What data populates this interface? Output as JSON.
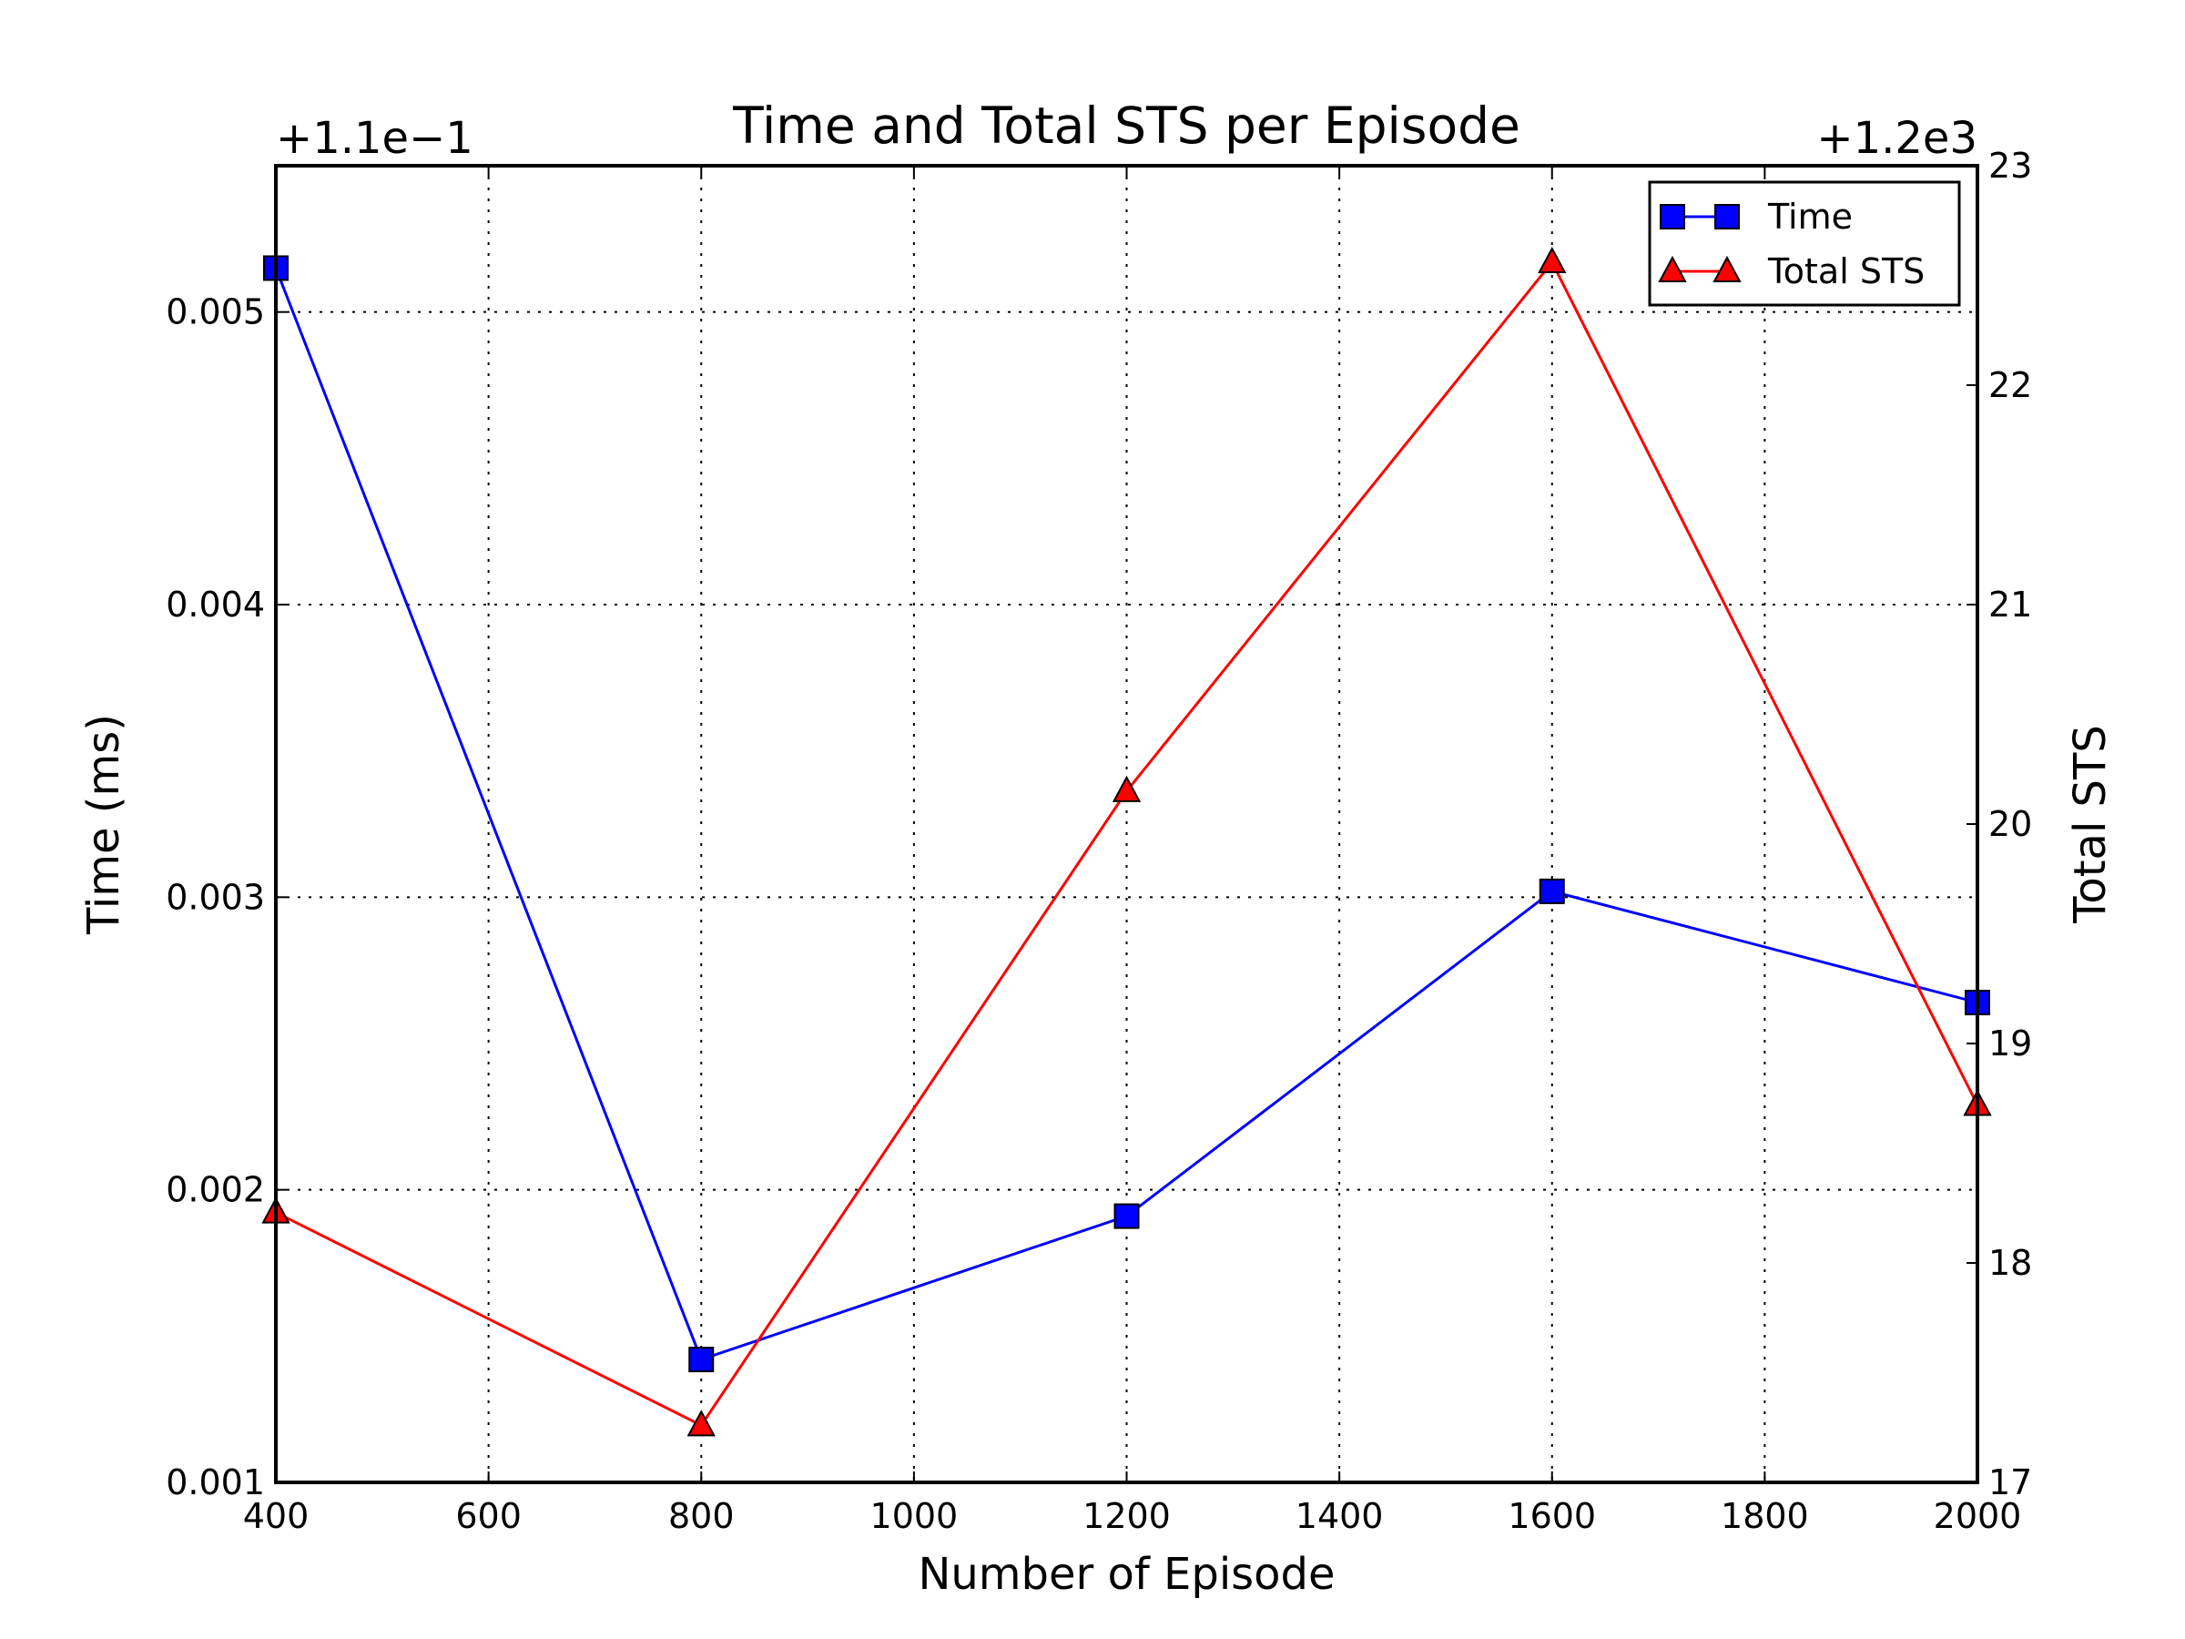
{
  "chart_data": {
    "type": "line",
    "title": "Time and Total STS per Episode",
    "xlabel": "Number of Episode",
    "ylabel_left": "Time (ms)",
    "ylabel_right": "Total STS",
    "offset_left": "+1.1e−1",
    "offset_right": "+1.2e3",
    "x_ticks": [
      "400",
      "600",
      "800",
      "1000",
      "1200",
      "1400",
      "1600",
      "1800",
      "2000"
    ],
    "y_left_ticks": [
      "0.001",
      "0.002",
      "0.003",
      "0.004",
      "0.005"
    ],
    "y_right_ticks": [
      "17",
      "18",
      "19",
      "20",
      "21",
      "22",
      "23"
    ],
    "xlim": [
      400,
      2000
    ],
    "ylim_left": [
      0.001,
      0.0055
    ],
    "ylim_right": [
      17,
      23
    ],
    "grid": true,
    "legend_position": "upper right",
    "x": [
      400,
      800,
      1200,
      1600,
      2000
    ],
    "series": [
      {
        "name": "Time",
        "axis": "left",
        "color": "#0000ff",
        "marker": "square",
        "values": [
          0.00515,
          0.00142,
          0.00191,
          0.00302,
          0.00264
        ]
      },
      {
        "name": "Total STS",
        "axis": "right",
        "color": "#ff0000",
        "marker": "triangle",
        "values": [
          18.23,
          17.26,
          20.15,
          22.56,
          18.72
        ]
      }
    ]
  }
}
